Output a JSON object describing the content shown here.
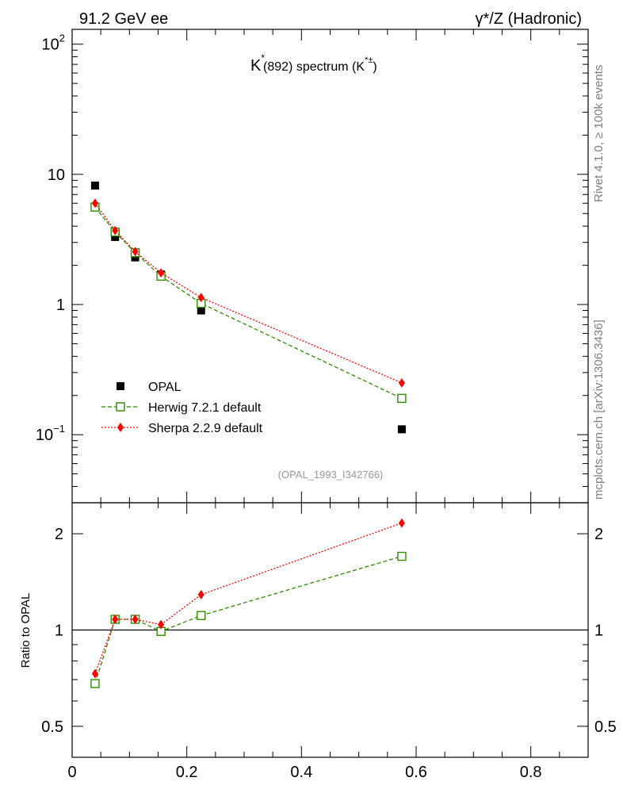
{
  "header": {
    "left": "91.2 GeV ee",
    "right": "γ*/Z (Hadronic)"
  },
  "side_labels": {
    "rivet": "Rivet 4.1.0, ≥ 100k events",
    "mcplots": "mcplots.cern.ch [arXiv:1306.3436]"
  },
  "chart_data": [
    {
      "type": "scatter",
      "panel": "main",
      "title": "K* (892) spectrum (K*±)",
      "title_parts": {
        "k": "K",
        "star": "*",
        "mid": "(892) spectrum (K",
        "sup": "*±",
        "close": ")"
      },
      "analysis_label": "(OPAL_1993_I342766)",
      "yscale": "log",
      "ylim": [
        0.03,
        130
      ],
      "xlim": [
        0,
        0.9
      ],
      "ytick_labels": [
        {
          "value": 100,
          "base": "10",
          "exp": "2"
        },
        {
          "value": 10,
          "base": "10",
          "exp": ""
        },
        {
          "value": 1,
          "base": "1",
          "exp": ""
        },
        {
          "value": 0.1,
          "base": "10",
          "exp": "−1"
        }
      ],
      "legend_position": "lower-left",
      "series": [
        {
          "name": "OPAL",
          "style": "data",
          "color": "#000000",
          "x": [
            0.04,
            0.075,
            0.11,
            0.155,
            0.225,
            0.575
          ],
          "y": [
            8.2,
            3.3,
            2.3,
            1.7,
            0.9,
            0.11
          ]
        },
        {
          "name": "Herwig 7.2.1 default",
          "style": "dashed-open-square",
          "color": "#2e8b00",
          "x": [
            0.04,
            0.075,
            0.11,
            0.155,
            0.225,
            0.575
          ],
          "y": [
            5.6,
            3.6,
            2.5,
            1.65,
            1.02,
            0.19
          ]
        },
        {
          "name": "Sherpa 2.2.9 default",
          "style": "dotted-diamond",
          "color": "#ff0000",
          "x": [
            0.04,
            0.075,
            0.11,
            0.155,
            0.225,
            0.575
          ],
          "y": [
            6.0,
            3.7,
            2.55,
            1.75,
            1.13,
            0.25
          ]
        }
      ]
    },
    {
      "type": "line",
      "panel": "ratio",
      "ylabel": "Ratio to OPAL",
      "yscale": "log",
      "ylim": [
        0.4,
        2.5
      ],
      "xlim": [
        0,
        0.9
      ],
      "xtick_labels": [
        "0",
        "0.2",
        "0.4",
        "0.6",
        "0.8"
      ],
      "xtick_values": [
        0,
        0.2,
        0.4,
        0.6,
        0.8
      ],
      "ytick_labels": [
        "0.5",
        "1",
        "2"
      ],
      "ytick_values": [
        0.5,
        1,
        2
      ],
      "reference_line": 1,
      "series": [
        {
          "name": "Herwig 7.2.1 default",
          "color": "#2e8b00",
          "x": [
            0.04,
            0.075,
            0.11,
            0.155,
            0.225,
            0.575
          ],
          "y": [
            0.68,
            1.08,
            1.08,
            0.99,
            1.11,
            1.7
          ]
        },
        {
          "name": "Sherpa 2.2.9 default",
          "color": "#ff0000",
          "x": [
            0.04,
            0.075,
            0.11,
            0.155,
            0.225,
            0.575
          ],
          "y": [
            0.73,
            1.08,
            1.08,
            1.04,
            1.29,
            2.16
          ]
        }
      ]
    }
  ]
}
